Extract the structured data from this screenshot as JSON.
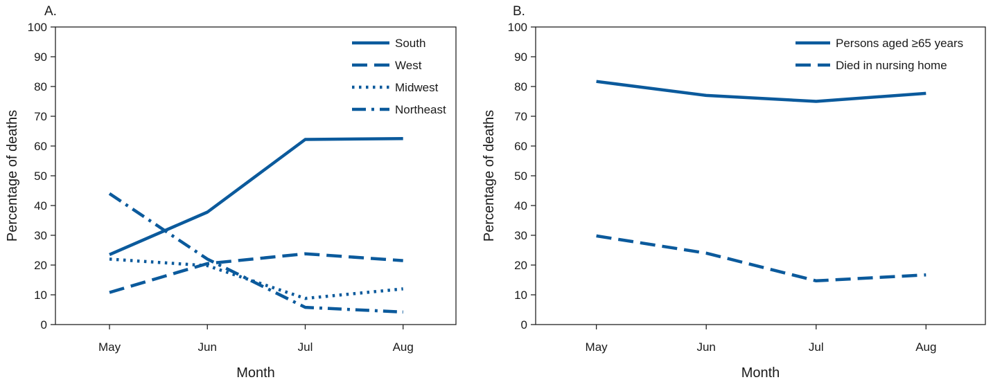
{
  "colors": {
    "series": "#0b5a9c",
    "axis": "#222222",
    "text": "#1a1a1a"
  },
  "chart_data": [
    {
      "panel_label": "A.",
      "type": "line",
      "xlabel": "Month",
      "ylabel": "Percentage of deaths",
      "categories": [
        "May",
        "Jun",
        "Jul",
        "Aug"
      ],
      "ylim": [
        0,
        100
      ],
      "yticks": [
        "0",
        "10",
        "20",
        "30",
        "40",
        "50",
        "60",
        "70",
        "80",
        "90",
        "100"
      ],
      "legend_position": "top-right",
      "grid": false,
      "series": [
        {
          "name": "South",
          "style": "solid",
          "values": [
            23.5,
            37.8,
            62.2,
            62.5
          ]
        },
        {
          "name": "West",
          "style": "dashed",
          "values": [
            10.8,
            20.5,
            23.8,
            21.5
          ]
        },
        {
          "name": "Midwest",
          "style": "dotted",
          "values": [
            22.0,
            19.8,
            8.8,
            12.0
          ]
        },
        {
          "name": "Northeast",
          "style": "dashdot",
          "values": [
            44.0,
            22.0,
            5.8,
            4.2
          ]
        }
      ]
    },
    {
      "panel_label": "B.",
      "type": "line",
      "xlabel": "Month",
      "ylabel": "Percentage of deaths",
      "categories": [
        "May",
        "Jun",
        "Jul",
        "Aug"
      ],
      "ylim": [
        0,
        100
      ],
      "yticks": [
        "0",
        "10",
        "20",
        "30",
        "40",
        "50",
        "60",
        "70",
        "80",
        "90",
        "100"
      ],
      "legend_position": "top-right",
      "grid": false,
      "series": [
        {
          "name": "Persons aged ≥65 years",
          "style": "solid",
          "values": [
            81.7,
            77.0,
            75.0,
            77.7
          ]
        },
        {
          "name": "Died in nursing home",
          "style": "dashed",
          "values": [
            29.8,
            24.0,
            14.7,
            16.7
          ]
        }
      ]
    }
  ]
}
